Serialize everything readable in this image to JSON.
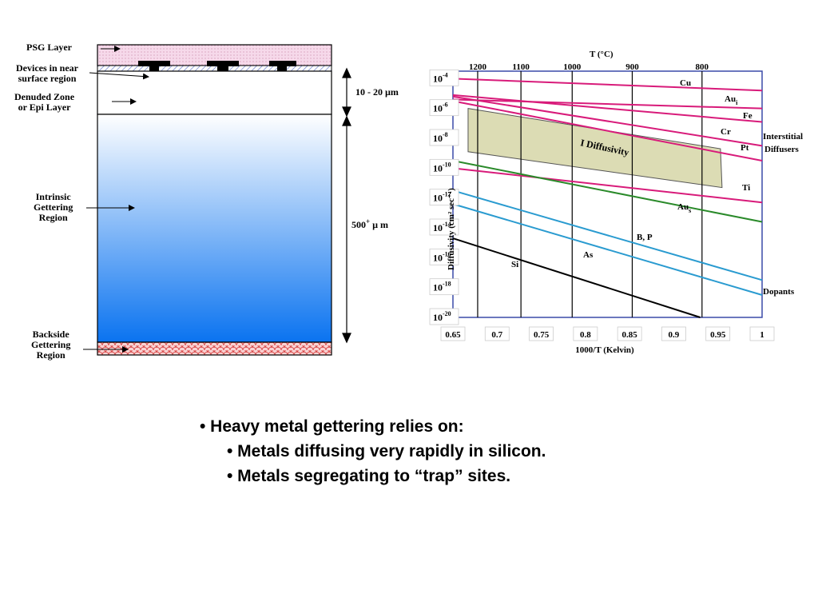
{
  "wafer": {
    "labels": {
      "psg": "PSG Layer",
      "devices": [
        "Devices in near",
        "surface region"
      ],
      "denuded": [
        "Denuded Zone",
        "or Epi Layer"
      ],
      "intrinsic": [
        "Intrinsic",
        "Gettering",
        "Region"
      ],
      "backside": [
        "Backside",
        "Gettering",
        "Region"
      ]
    },
    "dimensions": {
      "top": "10 - 20 µm",
      "bulk_number": "500",
      "bulk_sup": "+",
      "bulk_unit": " µ m"
    },
    "colors": {
      "psg": "#f6d9ea",
      "bulk_top": "#ffffff",
      "bulk_bottom": "#0a73f0",
      "backside": "#f9d3d3",
      "devices": "#000000"
    }
  },
  "chart_data": {
    "type": "line",
    "title": "T (°C)",
    "top_axis_ticks": [
      "1200",
      "1100",
      "1000",
      "900",
      "800"
    ],
    "xlabel": "1000/T (Kelvin)",
    "x_ticks": [
      "0.65",
      "0.7",
      "0.75",
      "0.8",
      "0.85",
      "0.9",
      "0.95",
      "1"
    ],
    "xlim": [
      0.65,
      1.0
    ],
    "ylabel": "Diffusivity (cm² sec⁻¹)",
    "y_ticks": [
      "-4",
      "-6",
      "-8",
      "-10",
      "-12",
      "-14",
      "-16",
      "-18",
      "-20"
    ],
    "ylim": [
      -20,
      -3.5
    ],
    "y_scale": "log10",
    "box_label": "I Diffusivity",
    "group_labels": {
      "interstitial": [
        "Interstitial",
        "Diffusers"
      ],
      "dopants": "Dopants"
    },
    "series": [
      {
        "name": "Cu",
        "color": "#d81b7a",
        "x": [
          0.65,
          1.0
        ],
        "y": [
          -4.0,
          -4.8
        ]
      },
      {
        "name": "Au",
        "sub": "i",
        "color": "#d81b7a",
        "x": [
          0.65,
          1.0
        ],
        "y": [
          -5.4,
          -6.0
        ]
      },
      {
        "name": "Fe",
        "color": "#d81b7a",
        "x": [
          0.65,
          1.0
        ],
        "y": [
          -5.1,
          -6.9
        ]
      },
      {
        "name": "Cr",
        "color": "#d81b7a",
        "x": [
          0.65,
          1.0
        ],
        "y": [
          -5.2,
          -8.5
        ]
      },
      {
        "name": "Pt",
        "color": "#d81b7a",
        "x": [
          0.65,
          1.0
        ],
        "y": [
          -5.5,
          -9.5
        ]
      },
      {
        "name": "Ti",
        "color": "#d81b7a",
        "x": [
          0.65,
          1.0
        ],
        "y": [
          -10.0,
          -12.3
        ]
      },
      {
        "name": "Au",
        "sub": "s",
        "color": "#2a8a2a",
        "x": [
          0.65,
          1.0
        ],
        "y": [
          -9.5,
          -13.6
        ]
      },
      {
        "name": "B, P",
        "color": "#2a9bd0",
        "x": [
          0.65,
          1.0
        ],
        "y": [
          -11.5,
          -17.5
        ]
      },
      {
        "name": "As",
        "color": "#2a9bd0",
        "x": [
          0.65,
          1.0
        ],
        "y": [
          -12.4,
          -18.5
        ]
      },
      {
        "name": "Si",
        "color": "#000000",
        "x": [
          0.65,
          0.93
        ],
        "y": [
          -14.7,
          -20.0
        ]
      }
    ],
    "i_box": {
      "x": [
        0.678,
        0.98
      ],
      "y_top": [
        -6.0,
        -8.7
      ],
      "y_bottom": [
        -8.9,
        -11.3
      ]
    },
    "box_color": "#dcdcb4",
    "vertical_lines_x": [
      0.678,
      0.727,
      0.785,
      0.853,
      0.932
    ]
  },
  "bullets": {
    "main": "• Heavy metal gettering relies on:",
    "sub": [
      "• Metals diffusing very rapidly in silicon.",
      "• Metals segregating to “trap” sites."
    ]
  }
}
